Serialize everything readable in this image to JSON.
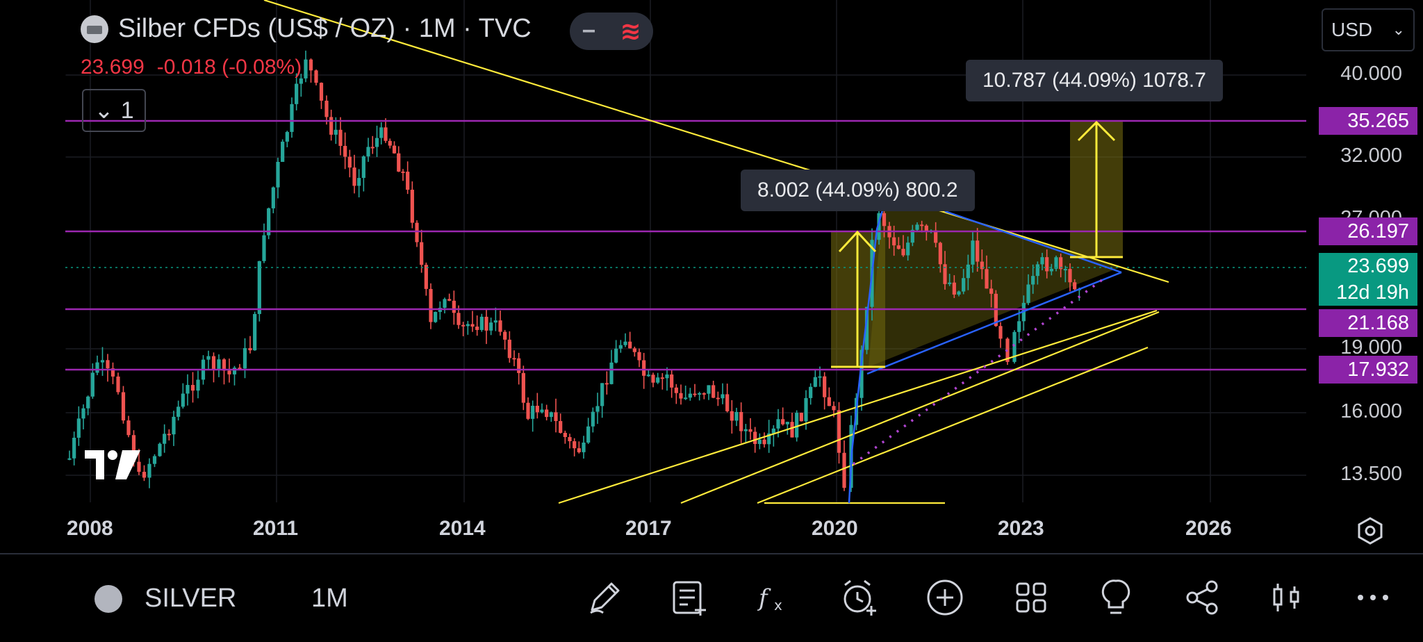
{
  "header": {
    "symbol_title": "Silber CFDs (US$ / OZ) · 1M · TVC",
    "last_price": "23.699",
    "change": "-0.018 (-0.08%)",
    "layout_count": "1",
    "currency": "USD"
  },
  "price_axis": {
    "labels": [
      "40.000",
      "32.000",
      "27.000",
      "19.000",
      "16.000",
      "13.500"
    ],
    "tags": [
      {
        "value": "35.265",
        "color": "#8b23a8"
      },
      {
        "value": "26.197",
        "color": "#8b23a8"
      },
      {
        "value": "21.168",
        "color": "#8b23a8"
      },
      {
        "value": "17.932",
        "color": "#8b23a8"
      }
    ],
    "current": {
      "value": "23.699",
      "countdown": "12d 19h",
      "color": "#089981"
    }
  },
  "time_axis": {
    "labels": [
      "2008",
      "2011",
      "2014",
      "2017",
      "2020",
      "2023",
      "2026"
    ]
  },
  "measurements": [
    {
      "text": "10.787 (44.09%) 1078.7"
    },
    {
      "text": "8.002 (44.09%) 800.2"
    }
  ],
  "bottom_bar": {
    "symbol": "SILVER",
    "interval": "1M",
    "tools": [
      "pencil-icon",
      "notes-icon",
      "indicators-icon",
      "alert-icon",
      "add-icon",
      "layouts-icon",
      "ideas-icon",
      "share-icon",
      "chart-type-icon",
      "more-icon"
    ]
  },
  "colors": {
    "up": "#26a69a",
    "down": "#ef5350",
    "horizontal_levels": "#9c27b0",
    "trendlines": "#ffeb3b",
    "triangle": "#2962ff"
  }
}
